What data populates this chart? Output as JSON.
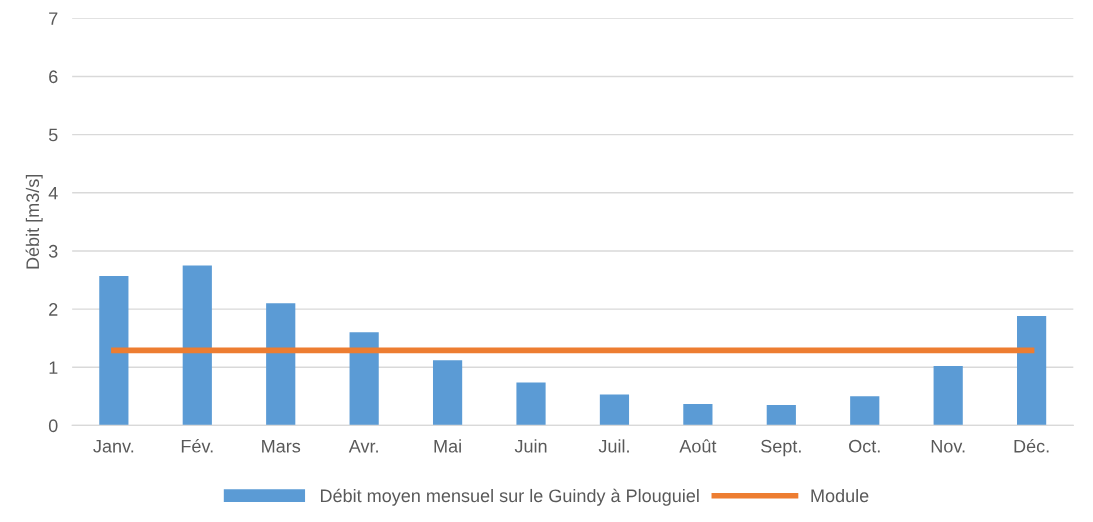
{
  "chart_data": {
    "type": "bar",
    "ylabel": "Débit [m3/s]",
    "categories": [
      "Janv.",
      "Fév.",
      "Mars",
      "Avr.",
      "Mai",
      "Juin",
      "Juil.",
      "Août",
      "Sept.",
      "Oct.",
      "Nov.",
      "Déc."
    ],
    "series": [
      {
        "name": "Débit moyen mensuel sur le Guindy à Plouguiel",
        "color": "#5b9bd5",
        "values": [
          2.57,
          2.75,
          2.1,
          1.6,
          1.12,
          0.74,
          0.53,
          0.37,
          0.35,
          0.5,
          1.02,
          1.88
        ]
      },
      {
        "name": "Module",
        "type": "line",
        "color": "#ed7d31",
        "values": [
          1.29,
          1.29,
          1.29,
          1.29,
          1.29,
          1.29,
          1.29,
          1.29,
          1.29,
          1.29,
          1.29,
          1.29
        ]
      }
    ],
    "ylim": [
      0,
      7
    ],
    "yticks": [
      0,
      1,
      2,
      3,
      4,
      5,
      6,
      7
    ],
    "grid": "y",
    "legend": "bottom"
  }
}
